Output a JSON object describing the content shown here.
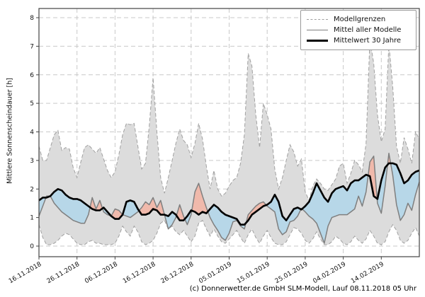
{
  "chart": {
    "y_axis_label": "Mittlere Sonnenscheindauer [h]",
    "footer": "(c) Donnerwetter.de GmbH SLM-Modell, Lauf 08.11.2018 05 Uhr",
    "legend": [
      {
        "label": "Modellgrenzen",
        "style": "dashed-gray"
      },
      {
        "label": "Mittel aller Modelle",
        "style": "solid-gray"
      },
      {
        "label": "Mittelwert 30 Jahre",
        "style": "solid-black-thick"
      }
    ]
  },
  "chart_data": {
    "type": "area",
    "title": "",
    "xlabel": "",
    "ylabel": "Mittlere Sonnenscheindauer [h]",
    "ylim": [
      0,
      8
    ],
    "y_ticks": [
      0,
      1,
      2,
      3,
      4,
      5,
      6,
      7,
      8
    ],
    "grid": true,
    "legend_position": "upper right",
    "x": {
      "unit": "day_index_from_start",
      "start_label": "16.11.2018",
      "count": 101
    },
    "x_ticks": {
      "days": [
        0,
        10,
        20,
        30,
        40,
        50,
        60,
        70,
        80,
        90
      ],
      "labels": [
        "16.11.2018",
        "26.11.2018",
        "06.12.2018",
        "16.12.2018",
        "26.12.2018",
        "05.01.2019",
        "15.01.2019",
        "25.01.2019",
        "04.02.2019",
        "14.02.2019"
      ]
    },
    "colors": {
      "band_fill": "#dcdcdc",
      "band_border": "#a0a0a0",
      "model_mean_line": "#7f7f7f",
      "mean_30y_line": "#000000",
      "above_normal_fill": "#f0b9ab",
      "below_normal_fill": "#b7d7e8",
      "grid": "#c9c9c9",
      "frame": "#444444"
    },
    "series": [
      {
        "name": "Modellgrenzen Obergrenze",
        "role": "band_upper",
        "values": [
          3.5,
          3.0,
          3.0,
          3.45,
          3.9,
          4.05,
          3.35,
          3.45,
          3.4,
          2.75,
          2.4,
          2.95,
          3.45,
          3.55,
          3.4,
          3.25,
          3.45,
          3.05,
          2.65,
          2.4,
          2.6,
          3.2,
          3.9,
          4.3,
          4.25,
          4.3,
          3.5,
          2.7,
          2.9,
          4.2,
          5.9,
          4.0,
          2.4,
          1.85,
          2.4,
          3.0,
          3.6,
          4.1,
          3.7,
          3.55,
          3.1,
          3.6,
          4.3,
          3.75,
          2.8,
          2.0,
          2.65,
          2.0,
          1.75,
          1.85,
          2.1,
          2.3,
          2.4,
          2.9,
          3.9,
          6.75,
          6.3,
          4.6,
          3.45,
          5.0,
          4.6,
          4.1,
          2.7,
          2.0,
          2.4,
          3.0,
          3.55,
          3.3,
          2.8,
          3.05,
          1.9,
          1.6,
          2.1,
          2.35,
          2.2,
          2.0,
          1.95,
          2.15,
          2.35,
          2.8,
          2.9,
          2.2,
          2.55,
          3.0,
          2.85,
          2.6,
          3.6,
          7.25,
          6.4,
          4.6,
          3.65,
          4.1,
          7.1,
          5.6,
          3.5,
          2.9,
          3.8,
          3.4,
          2.9,
          4.0,
          3.75
        ]
      },
      {
        "name": "Modellgrenzen Untergrenze",
        "role": "band_lower",
        "values": [
          0.75,
          0.3,
          0.05,
          0.05,
          0.1,
          0.2,
          0.35,
          0.45,
          0.4,
          0.25,
          0.1,
          0.05,
          0.05,
          0.15,
          0.2,
          0.1,
          0.1,
          0.05,
          0.05,
          0.05,
          0.1,
          0.35,
          0.7,
          0.5,
          0.35,
          0.7,
          0.5,
          0.15,
          0.05,
          0.1,
          0.2,
          0.45,
          0.8,
          0.9,
          0.6,
          0.7,
          0.5,
          0.4,
          0.55,
          0.35,
          0.15,
          0.35,
          0.8,
          0.9,
          0.6,
          0.35,
          0.6,
          0.35,
          0.15,
          0.1,
          0.25,
          0.4,
          0.55,
          0.3,
          0.1,
          0.4,
          0.6,
          0.3,
          0.1,
          0.35,
          0.55,
          0.3,
          0.1,
          0.05,
          0.05,
          0.15,
          0.4,
          0.65,
          0.6,
          0.45,
          0.2,
          0.1,
          0.25,
          0.5,
          0.25,
          0.05,
          0.05,
          0.15,
          0.35,
          0.25,
          0.1,
          0.05,
          0.15,
          0.35,
          0.2,
          0.1,
          0.25,
          0.55,
          0.35,
          0.1,
          0.05,
          0.15,
          0.5,
          0.75,
          0.55,
          0.2,
          0.1,
          0.2,
          0.45,
          0.65,
          0.35
        ]
      },
      {
        "name": "Mittel aller Modelle",
        "role": "model_mean",
        "values": [
          1.05,
          1.4,
          1.75,
          1.75,
          1.5,
          1.35,
          1.2,
          1.1,
          1.0,
          0.9,
          0.85,
          0.8,
          0.8,
          1.1,
          1.7,
          1.3,
          1.6,
          1.2,
          1.1,
          1.05,
          1.3,
          1.25,
          1.1,
          1.05,
          1.0,
          1.1,
          1.2,
          1.35,
          1.55,
          1.45,
          1.7,
          1.35,
          1.6,
          1.1,
          0.6,
          0.75,
          1.0,
          1.45,
          1.05,
          0.75,
          1.1,
          1.9,
          2.2,
          1.75,
          1.35,
          1.0,
          0.75,
          0.55,
          0.3,
          0.2,
          0.45,
          0.85,
          0.9,
          0.7,
          0.6,
          1.1,
          1.25,
          1.4,
          1.5,
          1.55,
          1.4,
          1.3,
          1.2,
          0.6,
          0.4,
          0.5,
          0.85,
          0.9,
          1.05,
          1.32,
          1.2,
          1.05,
          0.95,
          0.8,
          0.45,
          0.1,
          0.7,
          1.0,
          1.05,
          1.1,
          1.1,
          1.1,
          1.2,
          1.3,
          1.75,
          1.4,
          1.9,
          2.95,
          3.15,
          1.5,
          1.15,
          2.1,
          3.25,
          2.5,
          1.45,
          0.9,
          1.1,
          1.5,
          1.25,
          1.8,
          2.25
        ]
      },
      {
        "name": "Mittelwert 30 Jahre",
        "role": "mean_30y",
        "values": [
          1.6,
          1.7,
          1.7,
          1.75,
          1.9,
          2.0,
          1.95,
          1.8,
          1.7,
          1.65,
          1.65,
          1.6,
          1.5,
          1.4,
          1.3,
          1.25,
          1.25,
          1.35,
          1.2,
          1.05,
          0.95,
          0.95,
          1.1,
          1.55,
          1.6,
          1.55,
          1.3,
          1.1,
          1.1,
          1.15,
          1.3,
          1.25,
          1.1,
          1.1,
          1.05,
          1.2,
          1.1,
          0.9,
          0.9,
          1.05,
          1.25,
          1.2,
          1.1,
          1.2,
          1.15,
          1.3,
          1.45,
          1.35,
          1.2,
          1.1,
          1.05,
          1.0,
          0.95,
          0.75,
          0.75,
          0.9,
          1.1,
          1.2,
          1.3,
          1.4,
          1.45,
          1.55,
          1.8,
          1.55,
          1.05,
          0.9,
          1.1,
          1.3,
          1.35,
          1.28,
          1.4,
          1.55,
          1.85,
          2.2,
          1.95,
          1.7,
          1.55,
          1.85,
          2.0,
          2.05,
          2.1,
          1.95,
          2.2,
          2.3,
          2.3,
          2.4,
          2.5,
          2.45,
          1.75,
          1.65,
          2.3,
          2.75,
          2.9,
          2.9,
          2.85,
          2.55,
          2.2,
          2.3,
          2.5,
          2.6,
          2.65
        ]
      }
    ]
  }
}
